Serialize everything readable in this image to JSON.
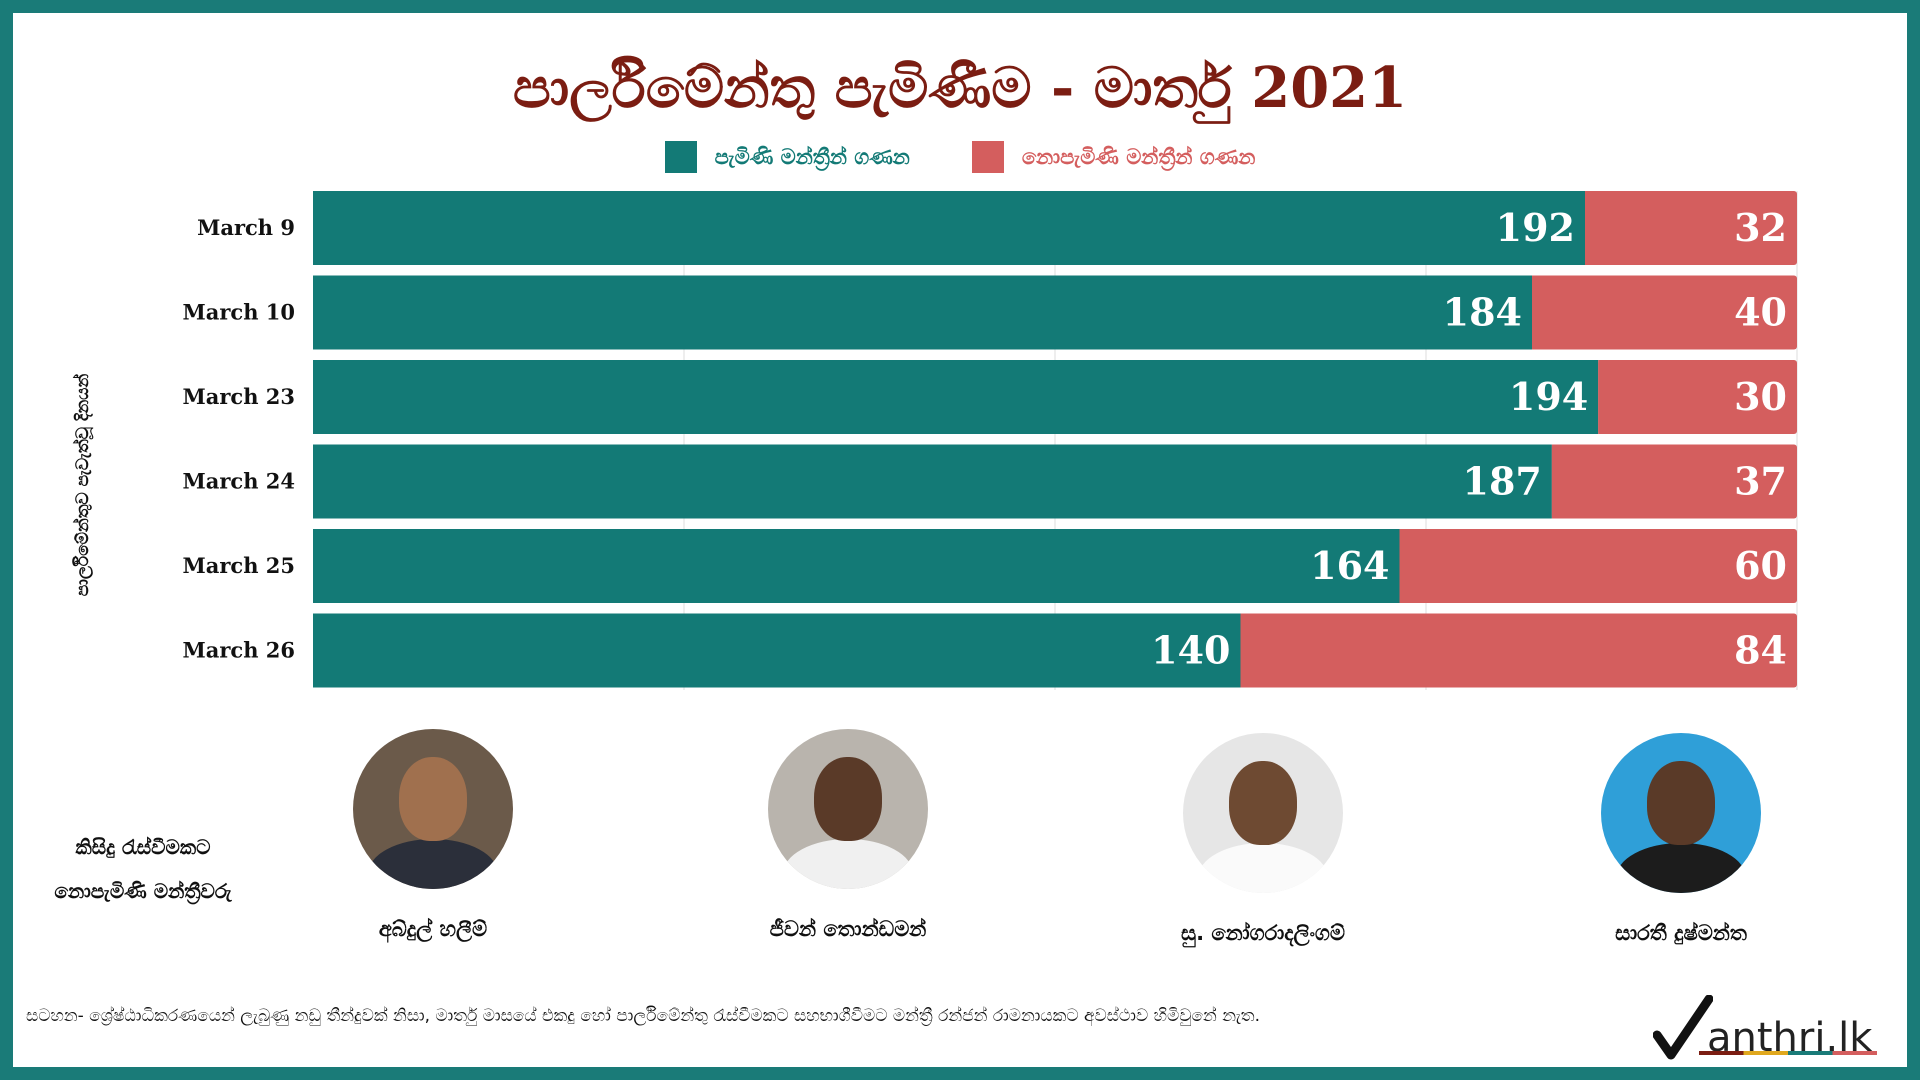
{
  "colors": {
    "frame": "#1a7b78",
    "present": "#137a76",
    "absent": "#d45e5e",
    "title": "#7b1d12"
  },
  "chart_data": {
    "type": "bar",
    "orientation": "horizontal",
    "stacked": true,
    "title": "පාර්ලිමේන්තු පැමිණීම - මාර්තු 2021",
    "ylabel": "පාර්ලිමේන්තුව පැවැත්වූ දිනයන්",
    "xlabel": "",
    "xlim": [
      0,
      224
    ],
    "grid": true,
    "legend_position": "top",
    "categories": [
      "March 9",
      "March 10",
      "March 23",
      "March 24",
      "March 25",
      "March 26"
    ],
    "series": [
      {
        "name": "පැමිණි මන්ත්‍රීන් ගණන",
        "values": [
          192,
          184,
          194,
          187,
          164,
          140
        ],
        "color": "#137a76"
      },
      {
        "name": "නොපැමිණි මන්ත්‍රීන් ගණන",
        "values": [
          32,
          40,
          30,
          37,
          60,
          84
        ],
        "color": "#d45e5e"
      }
    ]
  },
  "absentees": {
    "label_line1": "කිසිදු රැස්වීමකට",
    "label_line2": "නොපැමිණි මන්ත්‍රීවරු",
    "people": [
      {
        "name": "අබ්දුල් හලීම්",
        "icon": "person-photo"
      },
      {
        "name": "ජීවන් තොන්ඩමන්",
        "icon": "person-photo"
      },
      {
        "name": "සු. නෝගරාදලිංගම්",
        "icon": "person-photo"
      },
      {
        "name": "සාරතී දුෂ්මන්ත",
        "icon": "person-photo"
      }
    ]
  },
  "note": "සටහන- ශ්‍රේෂ්ඨාධිකරණයෙන් ලැබුණු නඩු තීන්දුවක් නිසා, මාර්තු මාසයේ එකදු හෝ පාර්ලිමේන්තු රැස්වීමකට සහභාගීවීමට මන්ත්‍රී රන්ජන් රාමනායකට අවස්ථාව හිමිවුනේ නැත.",
  "logo": {
    "text": "anthri.lk",
    "icon": "checkmark-m-icon"
  }
}
